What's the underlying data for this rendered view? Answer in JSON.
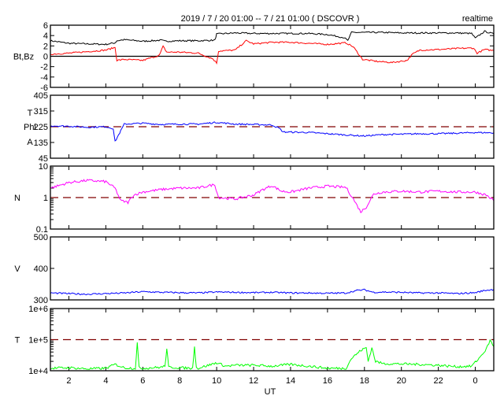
{
  "title": "2019 / 7 / 20   01:00 --  7 / 21   01:00 ( DSCOVR )",
  "realtime_label": "realtime",
  "chart_data": [
    {
      "type": "line",
      "panel": "magnetic-field",
      "ylabel": "Bt,Bz",
      "ylim": [
        -6,
        6
      ],
      "yticks": [
        "6",
        "4",
        "2",
        "0",
        "-2",
        "-4",
        "-6"
      ],
      "reference_line": 0,
      "series": [
        {
          "name": "Bt",
          "color": "#000000",
          "x": [
            1,
            2,
            3,
            4,
            4.5,
            4.6,
            5,
            6,
            7,
            7.2,
            8,
            9,
            9.9,
            10,
            11,
            12,
            13,
            14,
            15,
            16,
            16.9,
            17.1,
            17.3,
            18,
            19,
            20,
            21,
            22,
            23,
            23.8,
            24,
            24.5,
            25
          ],
          "y": [
            3,
            2.5,
            2.4,
            2.3,
            2.6,
            3.0,
            3.2,
            2.9,
            3.1,
            2.9,
            3,
            3,
            3.1,
            4.3,
            4.5,
            4.4,
            4.4,
            4.4,
            4.4,
            4.2,
            3.6,
            3.0,
            4.6,
            4.6,
            4.6,
            4.5,
            4.5,
            4.5,
            4.5,
            4.4,
            3.5,
            4.8,
            4.3
          ]
        },
        {
          "name": "Bz",
          "color": "#ff0000",
          "x": [
            1,
            2,
            3,
            4,
            4.5,
            4.6,
            5,
            6,
            6.9,
            7.1,
            7.3,
            8,
            9,
            9.8,
            10,
            10.1,
            11,
            11.6,
            12,
            13,
            14,
            15,
            16,
            17,
            17.4,
            17.9,
            18.7,
            19.5,
            20.3,
            20.6,
            21,
            22,
            23,
            23.9,
            24.1,
            24.5,
            25
          ],
          "y": [
            0.4,
            0.6,
            0.9,
            1.2,
            1.7,
            -0.8,
            -0.6,
            -0.8,
            0.2,
            1.9,
            0.8,
            0.8,
            0.6,
            -0.5,
            -1.3,
            1.0,
            1.2,
            3.0,
            2.4,
            2.7,
            2.7,
            2.5,
            2.3,
            2.6,
            1.8,
            -0.6,
            -1.0,
            -1.2,
            -0.8,
            0.4,
            1.2,
            1.3,
            1.5,
            1.6,
            0.6,
            1.3,
            1.1
          ]
        }
      ]
    },
    {
      "type": "line",
      "panel": "phi-angle",
      "ylabel": [
        "T",
        "Phi",
        "A"
      ],
      "ylim": [
        45,
        405
      ],
      "yticks": [
        "405",
        "315",
        "225",
        "135",
        "45"
      ],
      "reference_line": 225,
      "series": [
        {
          "name": "Phi",
          "color": "#0000ff",
          "x": [
            1,
            2,
            3,
            4,
            4.4,
            4.5,
            5,
            6,
            7,
            8,
            9,
            10,
            11,
            12,
            13,
            13.4,
            13.6,
            15,
            16,
            17,
            17.5,
            18,
            19,
            20,
            21,
            22,
            23,
            24,
            25
          ],
          "y": [
            230,
            228,
            222,
            225,
            215,
            140,
            240,
            245,
            238,
            240,
            240,
            250,
            240,
            238,
            235,
            215,
            195,
            192,
            185,
            178,
            175,
            172,
            180,
            182,
            185,
            185,
            188,
            192,
            190
          ]
        }
      ]
    },
    {
      "type": "line",
      "panel": "density",
      "ylabel": "N",
      "yscale": "log",
      "ylim": [
        0.1,
        10
      ],
      "yticks": [
        "10",
        "1",
        "0.1"
      ],
      "reference_line": 1,
      "series": [
        {
          "name": "N",
          "color": "#ff00ff",
          "x": [
            1,
            2,
            3,
            4,
            4.5,
            4.8,
            5.2,
            5.5,
            6,
            7,
            8,
            9,
            9.9,
            10.1,
            11,
            12,
            12.5,
            13,
            13.5,
            14,
            15,
            16,
            17,
            17.4,
            17.8,
            18.1,
            18.5,
            19,
            20,
            21,
            22,
            23,
            24,
            24.6,
            25
          ],
          "y": [
            2,
            3,
            3.5,
            3.2,
            2,
            0.8,
            0.7,
            1.2,
            1.5,
            1.8,
            2,
            2,
            2.6,
            1,
            0.9,
            1.2,
            1.8,
            2.4,
            1.6,
            1.5,
            2,
            2.3,
            2.1,
            0.9,
            0.35,
            0.5,
            1.3,
            1.5,
            1.6,
            1.5,
            1.6,
            1.5,
            1.5,
            1.2,
            0.8
          ]
        }
      ]
    },
    {
      "type": "line",
      "panel": "velocity",
      "ylabel": "V",
      "ylim": [
        300,
        500
      ],
      "yticks": [
        "500",
        "400",
        "300"
      ],
      "series": [
        {
          "name": "V",
          "color": "#0000ff",
          "x": [
            1,
            2,
            3,
            4,
            5,
            6,
            7,
            8,
            9,
            10,
            11,
            12,
            13,
            14,
            15,
            16,
            17,
            17.6,
            18,
            18.5,
            19,
            20,
            21,
            22,
            23,
            24,
            24.5,
            25
          ],
          "y": [
            322,
            320,
            318,
            320,
            322,
            326,
            324,
            323,
            322,
            325,
            324,
            323,
            324,
            322,
            322,
            321,
            322,
            330,
            332,
            324,
            325,
            324,
            322,
            322,
            320,
            323,
            330,
            333
          ]
        }
      ]
    },
    {
      "type": "line",
      "panel": "temperature",
      "ylabel": "T",
      "yscale": "log",
      "ylim": [
        10000,
        1000000
      ],
      "yticks": [
        "1e+6",
        "1e+5",
        "1e+4"
      ],
      "reference_line": 100000,
      "series": [
        {
          "name": "T",
          "color": "#00ff00",
          "x": [
            1,
            2,
            3,
            4,
            4.5,
            5,
            5.6,
            5.7,
            5.8,
            6,
            7,
            7.2,
            7.3,
            7.4,
            8,
            8.7,
            8.8,
            8.9,
            9,
            10,
            10.5,
            11,
            12,
            13,
            14,
            15,
            16,
            17,
            17.3,
            17.8,
            18.1,
            18.2,
            18.4,
            18.6,
            19,
            20,
            21,
            22,
            23,
            23.8,
            24.2,
            24.6,
            24.8,
            25
          ],
          "y": [
            12000,
            12500,
            11500,
            12000,
            16000,
            12500,
            12000,
            80000,
            12500,
            12000,
            13000,
            14000,
            50000,
            13000,
            12500,
            12000,
            65000,
            12500,
            12000,
            18000,
            14000,
            15000,
            15000,
            14000,
            16000,
            14000,
            12000,
            12000,
            25000,
            45000,
            55000,
            20000,
            55000,
            20000,
            17000,
            16500,
            16000,
            15000,
            13500,
            14000,
            25000,
            50000,
            95000,
            60000
          ]
        }
      ]
    }
  ],
  "xaxis": {
    "label": "UT",
    "xlim": [
      1,
      25
    ],
    "tick_hours": [
      2,
      4,
      6,
      8,
      10,
      12,
      14,
      16,
      18,
      20,
      22,
      24
    ],
    "tick_labels": [
      "2",
      "4",
      "6",
      "8",
      "10",
      "12",
      "14",
      "16",
      "18",
      "20",
      "22",
      "0"
    ]
  }
}
